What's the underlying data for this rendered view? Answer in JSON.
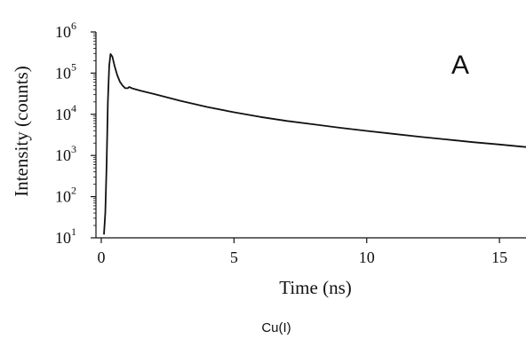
{
  "chart_data": {
    "type": "line",
    "title": "",
    "panel_label": "A",
    "caption": "Cu(I)",
    "xlabel": "Time (ns)",
    "ylabel": "Intensity (counts)",
    "xlim": [
      -0.2,
      16
    ],
    "ylim": [
      10,
      1000000
    ],
    "yscale": "log",
    "grid": false,
    "legend": "none",
    "x_ticks": [
      {
        "value": 0,
        "label": "0"
      },
      {
        "value": 5,
        "label": "5"
      },
      {
        "value": 10,
        "label": "10"
      },
      {
        "value": 15,
        "label": "15"
      }
    ],
    "y_ticks": [
      {
        "value": 10,
        "base": "10",
        "exp": "1"
      },
      {
        "value": 100,
        "base": "10",
        "exp": "2"
      },
      {
        "value": 1000,
        "base": "10",
        "exp": "3"
      },
      {
        "value": 10000,
        "base": "10",
        "exp": "4"
      },
      {
        "value": 100000,
        "base": "10",
        "exp": "5"
      },
      {
        "value": 1000000,
        "base": "10",
        "exp": "6"
      }
    ],
    "series": [
      {
        "color": "#111111",
        "x": [
          0.1,
          0.15,
          0.2,
          0.25,
          0.3,
          0.35,
          0.42,
          0.5,
          0.6,
          0.7,
          0.8,
          0.9,
          1.0,
          1.05,
          1.2,
          1.5,
          2,
          3,
          4,
          5,
          6,
          7,
          8,
          9,
          10,
          11,
          12,
          13,
          14,
          15,
          16
        ],
        "y": [
          12,
          40,
          600,
          20000,
          150000,
          290000,
          250000,
          150000,
          90000,
          62000,
          50000,
          43000,
          43000,
          46000,
          42000,
          37000,
          31000,
          21000,
          15000,
          11200,
          8600,
          6900,
          5700,
          4700,
          3950,
          3350,
          2850,
          2450,
          2100,
          1850,
          1600
        ]
      },
      {
        "color": "#111111",
        "style": "dotted",
        "x": [
          0,
          1,
          2,
          3,
          4,
          5,
          6,
          7,
          8,
          9,
          10,
          11,
          12,
          13,
          14,
          15,
          16
        ],
        "y": [
          10,
          10,
          10,
          10,
          10,
          10,
          10,
          10,
          10,
          10,
          10,
          10,
          10,
          10,
          10,
          10,
          10
        ]
      }
    ]
  }
}
